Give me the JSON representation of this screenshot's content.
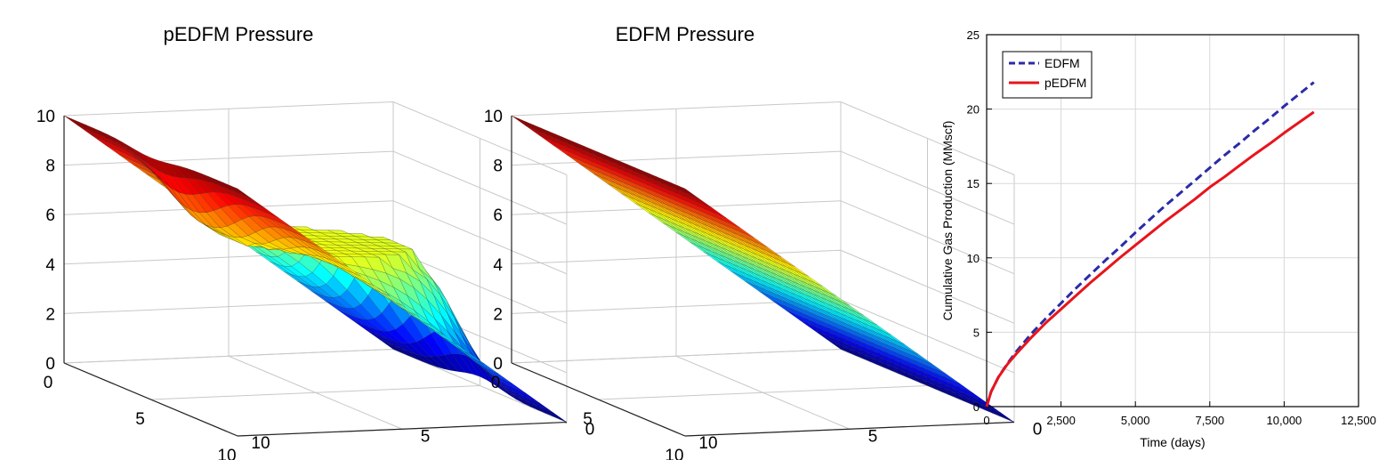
{
  "chart_data": [
    {
      "type": "surface",
      "title": "pEDFM Pressure",
      "x_ticks": [
        "0",
        "5",
        "10"
      ],
      "y_ticks": [
        "0",
        "5",
        "10"
      ],
      "z_ticks": [
        "0",
        "2",
        "4",
        "6",
        "8",
        "10"
      ],
      "xlim": [
        0,
        10
      ],
      "ylim": [
        0,
        10
      ],
      "zlim": [
        0,
        10
      ],
      "colormap": "jet",
      "surface": {
        "description_values": "Pressure decreases linearly from 10 at one boundary to 0 at the opposite boundary, with a raised circular region (fracture) of near-constant pressure about 6 at the domain centre.",
        "boundary_high": 10,
        "boundary_low": 0,
        "fracture_center": [
          5,
          5
        ],
        "fracture_radius": 2.2,
        "fracture_pressure": 6.2
      }
    },
    {
      "type": "surface",
      "title": "EDFM Pressure",
      "x_ticks": [
        "0",
        "5",
        "10"
      ],
      "y_ticks": [
        "0",
        "5",
        "10"
      ],
      "z_ticks": [
        "0",
        "2",
        "4",
        "6",
        "8",
        "10"
      ],
      "xlim": [
        0,
        10
      ],
      "ylim": [
        0,
        10
      ],
      "zlim": [
        0,
        10
      ],
      "colormap": "jet",
      "surface": {
        "boundary_high": 10,
        "boundary_low": 0
      }
    },
    {
      "type": "line",
      "xlabel": "Time (days)",
      "ylabel": "Cumulative Gas Production (MMscf)",
      "xlim": [
        0,
        12500
      ],
      "ylim": [
        0,
        25
      ],
      "x_ticks": [
        "0",
        "2,500",
        "5,000",
        "7,500",
        "10,000",
        "12,500"
      ],
      "y_ticks": [
        "0",
        "5",
        "10",
        "15",
        "20",
        "25"
      ],
      "grid": true,
      "legend_position": "top-left",
      "series": [
        {
          "name": "EDFM",
          "color": "#2b2ba8",
          "style": "dashed",
          "x": [
            0,
            150,
            400,
            700,
            1000,
            1500,
            2000,
            2500,
            3000,
            3500,
            4000,
            4500,
            5000,
            5500,
            6000,
            6500,
            7000,
            7500,
            8000,
            8500,
            9000,
            9500,
            10000,
            10500,
            11000
          ],
          "y": [
            0,
            1.0,
            2.0,
            2.9,
            3.7,
            4.9,
            5.95,
            6.95,
            7.95,
            8.9,
            9.85,
            10.75,
            11.7,
            12.6,
            13.5,
            14.35,
            15.2,
            16.05,
            16.9,
            17.7,
            18.55,
            19.35,
            20.2,
            21.0,
            21.8
          ]
        },
        {
          "name": "pEDFM",
          "color": "#e8141c",
          "style": "solid",
          "x": [
            0,
            150,
            400,
            700,
            1000,
            1500,
            2000,
            2500,
            3000,
            3500,
            4000,
            4500,
            5000,
            5500,
            6000,
            6500,
            7000,
            7500,
            8000,
            8500,
            9000,
            9500,
            10000,
            10500,
            11000
          ],
          "y": [
            0,
            1.0,
            2.0,
            2.85,
            3.55,
            4.65,
            5.65,
            6.55,
            7.45,
            8.35,
            9.2,
            10.05,
            10.85,
            11.65,
            12.45,
            13.2,
            13.95,
            14.75,
            15.45,
            16.2,
            16.95,
            17.65,
            18.4,
            19.1,
            19.8
          ]
        }
      ]
    }
  ],
  "colors": {
    "edfm_line": "#2b2ba8",
    "pedfm_line": "#e8141c",
    "axis": "#000000",
    "grid": "#d9d9d9",
    "surface_edge": "#1a1a1a"
  }
}
